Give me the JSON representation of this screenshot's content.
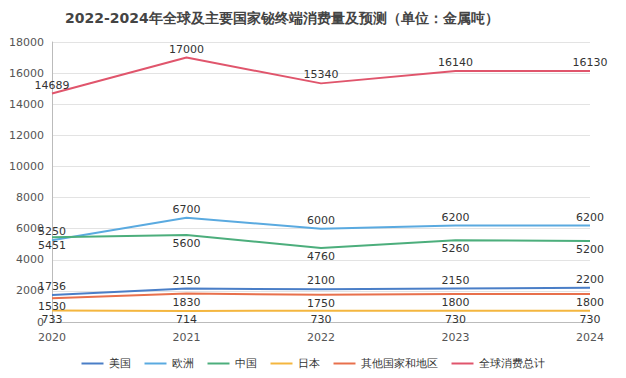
{
  "chart_data": {
    "type": "line",
    "title": "2022-2024年全球及主要国家铋终端消费量及预测（单位：金属吨）",
    "categories": [
      "2020",
      "2021",
      "2022",
      "2023",
      "2024"
    ],
    "series": [
      {
        "name": "美国",
        "color": "#4a7ec7",
        "values": [
          1736,
          2150,
          2100,
          2150,
          2200
        ]
      },
      {
        "name": "欧洲",
        "color": "#5aaae0",
        "values": [
          5250,
          6700,
          6000,
          6200,
          6200
        ]
      },
      {
        "name": "中国",
        "color": "#4cae7c",
        "values": [
          5451,
          5600,
          4760,
          5260,
          5200
        ]
      },
      {
        "name": "日本",
        "color": "#f4b63f",
        "values": [
          733,
          714,
          730,
          730,
          730
        ]
      },
      {
        "name": "其他国家和地区",
        "color": "#e8704c",
        "values": [
          1530,
          1830,
          1750,
          1800,
          1800
        ]
      },
      {
        "name": "全球消费总计",
        "color": "#e0556c",
        "values": [
          14689,
          17000,
          15340,
          16140,
          16130
        ]
      }
    ],
    "ylim": [
      0,
      18000
    ],
    "yticks": [
      0,
      2000,
      4000,
      6000,
      8000,
      10000,
      12000,
      14000,
      16000,
      18000
    ],
    "grid": true,
    "legend": "bottom",
    "data_labels": true
  }
}
